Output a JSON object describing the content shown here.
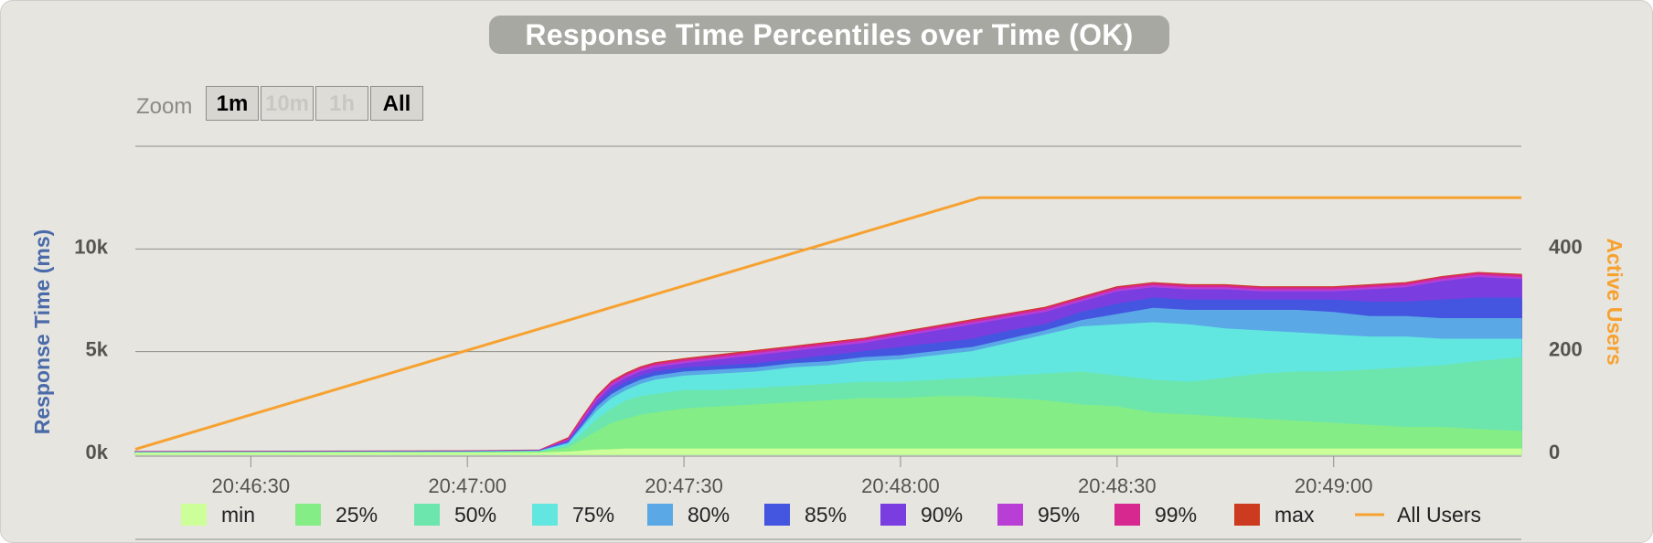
{
  "title": "Response Time Percentiles over Time (OK)",
  "zoom": {
    "label": "Zoom",
    "buttons": [
      {
        "label": "1m",
        "enabled": true
      },
      {
        "label": "10m",
        "enabled": false
      },
      {
        "label": "1h",
        "enabled": false
      },
      {
        "label": "All",
        "enabled": true
      }
    ]
  },
  "chart_data": {
    "type": "area",
    "title": "Response Time Percentiles over Time (OK)",
    "xlabel": "",
    "ylabel": "Response Time (ms)",
    "y2label": "Active Users",
    "x_ticks": [
      "20:46:30",
      "20:47:00",
      "20:47:30",
      "20:48:00",
      "20:48:30",
      "20:49:00"
    ],
    "y_ticks": [
      "0k",
      "5k",
      "10k"
    ],
    "y2_ticks": [
      "0",
      "200",
      "400"
    ],
    "x_range_seconds_from_2046": [
      14,
      206
    ],
    "ylim": [
      0,
      15000
    ],
    "y2lim": [
      0,
      600
    ],
    "grid": true,
    "legend_position": "bottom",
    "x_seconds": [
      14,
      30,
      45,
      60,
      70,
      74,
      76,
      78,
      80,
      82,
      84,
      86,
      88,
      90,
      95,
      100,
      105,
      110,
      115,
      120,
      125,
      130,
      135,
      140,
      145,
      150,
      155,
      160,
      165,
      170,
      175,
      180,
      185,
      190,
      195,
      200,
      206
    ],
    "series": [
      {
        "name": "min",
        "color": "#ccff99",
        "values": [
          50,
          50,
          50,
          50,
          60,
          100,
          150,
          200,
          220,
          250,
          250,
          250,
          250,
          250,
          250,
          250,
          250,
          250,
          250,
          250,
          250,
          250,
          250,
          250,
          250,
          250,
          250,
          250,
          250,
          250,
          250,
          250,
          250,
          250,
          250,
          250,
          250
        ]
      },
      {
        "name": "25%",
        "color": "#85ed85",
        "values": [
          60,
          70,
          80,
          80,
          100,
          300,
          700,
          1100,
          1500,
          1700,
          1900,
          2000,
          2100,
          2200,
          2300,
          2400,
          2500,
          2600,
          2700,
          2700,
          2800,
          2800,
          2700,
          2600,
          2400,
          2300,
          2000,
          1900,
          1800,
          1700,
          1600,
          1500,
          1400,
          1300,
          1300,
          1200,
          1100
        ]
      },
      {
        "name": "50%",
        "color": "#6ce6ad",
        "values": [
          70,
          80,
          90,
          90,
          120,
          400,
          1000,
          1700,
          2200,
          2600,
          2800,
          2900,
          3000,
          3100,
          3100,
          3200,
          3300,
          3400,
          3500,
          3500,
          3600,
          3700,
          3800,
          3900,
          4000,
          3800,
          3600,
          3500,
          3700,
          3900,
          4000,
          4000,
          4100,
          4200,
          4300,
          4500,
          4700
        ]
      },
      {
        "name": "75%",
        "color": "#62e6e0",
        "values": [
          80,
          90,
          100,
          100,
          140,
          500,
          1300,
          2100,
          2700,
          3100,
          3400,
          3600,
          3700,
          3800,
          3900,
          4000,
          4200,
          4300,
          4500,
          4600,
          4800,
          5000,
          5400,
          5800,
          6200,
          6300,
          6400,
          6300,
          6100,
          6000,
          5900,
          5800,
          5700,
          5700,
          5600,
          5600,
          5600
        ]
      },
      {
        "name": "80%",
        "color": "#5aa8e6",
        "values": [
          85,
          95,
          105,
          110,
          150,
          550,
          1400,
          2300,
          2900,
          3300,
          3600,
          3800,
          3900,
          4000,
          4100,
          4200,
          4400,
          4500,
          4700,
          4800,
          5000,
          5200,
          5600,
          6000,
          6500,
          6800,
          7100,
          7000,
          7000,
          7000,
          7000,
          6900,
          6700,
          6700,
          6600,
          6600,
          6600
        ]
      },
      {
        "name": "85%",
        "color": "#4455e0",
        "values": [
          90,
          100,
          110,
          120,
          160,
          600,
          1500,
          2400,
          3100,
          3500,
          3800,
          4000,
          4100,
          4200,
          4300,
          4400,
          4600,
          4800,
          5000,
          5200,
          5400,
          5600,
          6000,
          6300,
          6900,
          7300,
          7600,
          7500,
          7500,
          7500,
          7500,
          7500,
          7400,
          7400,
          7500,
          7600,
          7600
        ]
      },
      {
        "name": "90%",
        "color": "#7a3ee0",
        "values": [
          100,
          110,
          120,
          130,
          170,
          650,
          1600,
          2600,
          3300,
          3700,
          4000,
          4200,
          4300,
          4400,
          4600,
          4800,
          5000,
          5200,
          5400,
          5700,
          6000,
          6300,
          6600,
          6900,
          7400,
          7900,
          8100,
          8000,
          8000,
          7900,
          7900,
          7900,
          8000,
          8100,
          8400,
          8600,
          8500
        ]
      },
      {
        "name": "95%",
        "color": "#b83ed6",
        "values": [
          110,
          120,
          130,
          140,
          180,
          700,
          1700,
          2700,
          3400,
          3800,
          4100,
          4300,
          4400,
          4500,
          4700,
          4900,
          5100,
          5300,
          5500,
          5800,
          6100,
          6400,
          6700,
          7000,
          7500,
          8000,
          8200,
          8100,
          8100,
          8000,
          8000,
          8000,
          8100,
          8200,
          8500,
          8700,
          8600
        ]
      },
      {
        "name": "99%",
        "color": "#d6288f",
        "values": [
          120,
          130,
          140,
          150,
          190,
          750,
          1800,
          2800,
          3500,
          3900,
          4200,
          4400,
          4500,
          4600,
          4800,
          5000,
          5200,
          5400,
          5600,
          5900,
          6200,
          6500,
          6800,
          7100,
          7600,
          8100,
          8300,
          8200,
          8200,
          8100,
          8100,
          8100,
          8200,
          8300,
          8600,
          8800,
          8700
        ]
      },
      {
        "name": "max",
        "color": "#cc3a1f",
        "values": [
          130,
          140,
          150,
          160,
          200,
          800,
          1850,
          2850,
          3550,
          3950,
          4250,
          4450,
          4550,
          4650,
          4850,
          5050,
          5250,
          5450,
          5650,
          5950,
          6250,
          6550,
          6850,
          7150,
          7650,
          8150,
          8350,
          8250,
          8250,
          8150,
          8150,
          8150,
          8250,
          8350,
          8650,
          8850,
          8750
        ]
      }
    ],
    "users": {
      "name": "All Users",
      "color": "#f7a12f",
      "x_seconds": [
        14,
        131,
        206
      ],
      "values": [
        10,
        500,
        500
      ]
    }
  }
}
